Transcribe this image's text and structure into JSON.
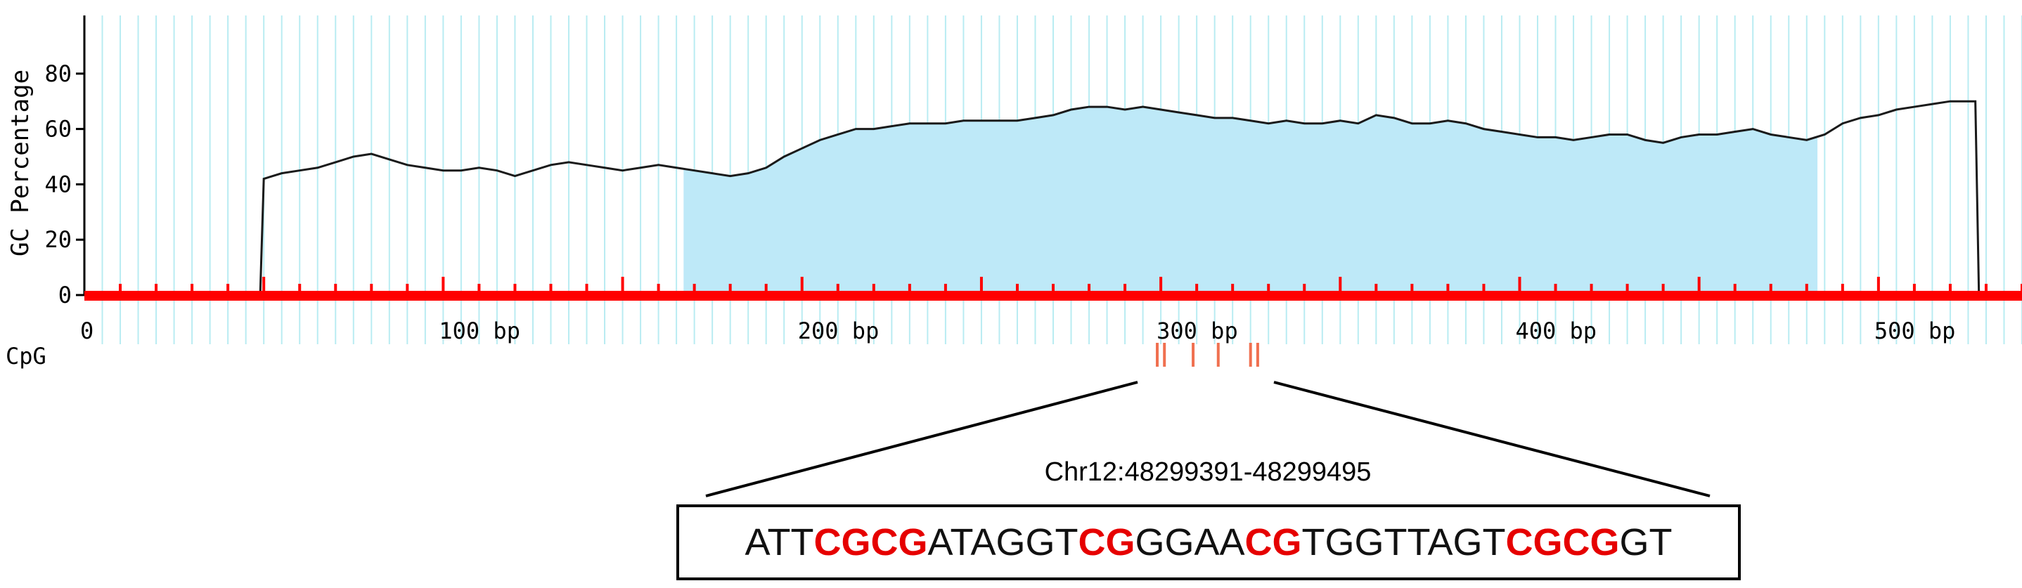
{
  "chart_data": {
    "type": "area",
    "ylabel": "GC Percentage",
    "ylim": [
      0,
      100
    ],
    "yticks": [
      "0",
      "20",
      "40",
      "60",
      "80"
    ],
    "ytick_values": [
      0,
      20,
      40,
      60,
      80
    ],
    "xlim": [
      0,
      540
    ],
    "xticks": [
      "0",
      "100 bp",
      "200 bp",
      "300 bp",
      "400 bp",
      "500 bp"
    ],
    "xtick_values": [
      0,
      100,
      200,
      300,
      400,
      500
    ],
    "cpg_island_range": [
      167,
      483
    ],
    "gc_profile": [
      [
        0,
        0
      ],
      [
        49,
        0
      ],
      [
        50,
        42
      ],
      [
        55,
        44
      ],
      [
        60,
        45
      ],
      [
        65,
        46
      ],
      [
        70,
        48
      ],
      [
        75,
        50
      ],
      [
        80,
        51
      ],
      [
        85,
        49
      ],
      [
        90,
        47
      ],
      [
        95,
        46
      ],
      [
        100,
        45
      ],
      [
        105,
        45
      ],
      [
        110,
        46
      ],
      [
        115,
        45
      ],
      [
        120,
        43
      ],
      [
        125,
        45
      ],
      [
        130,
        47
      ],
      [
        135,
        48
      ],
      [
        140,
        47
      ],
      [
        145,
        46
      ],
      [
        150,
        45
      ],
      [
        155,
        46
      ],
      [
        160,
        47
      ],
      [
        165,
        46
      ],
      [
        170,
        45
      ],
      [
        175,
        44
      ],
      [
        180,
        43
      ],
      [
        185,
        44
      ],
      [
        190,
        46
      ],
      [
        195,
        50
      ],
      [
        200,
        53
      ],
      [
        205,
        56
      ],
      [
        210,
        58
      ],
      [
        215,
        60
      ],
      [
        220,
        60
      ],
      [
        225,
        61
      ],
      [
        230,
        62
      ],
      [
        235,
        62
      ],
      [
        240,
        62
      ],
      [
        245,
        63
      ],
      [
        250,
        63
      ],
      [
        255,
        63
      ],
      [
        260,
        63
      ],
      [
        265,
        64
      ],
      [
        270,
        65
      ],
      [
        275,
        67
      ],
      [
        280,
        68
      ],
      [
        285,
        68
      ],
      [
        290,
        67
      ],
      [
        295,
        68
      ],
      [
        300,
        67
      ],
      [
        305,
        66
      ],
      [
        310,
        65
      ],
      [
        315,
        64
      ],
      [
        320,
        64
      ],
      [
        325,
        63
      ],
      [
        330,
        62
      ],
      [
        335,
        63
      ],
      [
        340,
        62
      ],
      [
        345,
        62
      ],
      [
        350,
        63
      ],
      [
        355,
        62
      ],
      [
        360,
        65
      ],
      [
        365,
        64
      ],
      [
        370,
        62
      ],
      [
        375,
        62
      ],
      [
        380,
        63
      ],
      [
        385,
        62
      ],
      [
        390,
        60
      ],
      [
        395,
        59
      ],
      [
        400,
        58
      ],
      [
        405,
        57
      ],
      [
        410,
        57
      ],
      [
        415,
        56
      ],
      [
        420,
        57
      ],
      [
        425,
        58
      ],
      [
        430,
        58
      ],
      [
        435,
        56
      ],
      [
        440,
        55
      ],
      [
        445,
        57
      ],
      [
        450,
        58
      ],
      [
        455,
        58
      ],
      [
        460,
        59
      ],
      [
        465,
        60
      ],
      [
        470,
        58
      ],
      [
        475,
        57
      ],
      [
        480,
        56
      ],
      [
        485,
        58
      ],
      [
        490,
        62
      ],
      [
        495,
        64
      ],
      [
        500,
        65
      ],
      [
        505,
        67
      ],
      [
        510,
        68
      ],
      [
        515,
        69
      ],
      [
        520,
        70
      ],
      [
        527,
        70
      ],
      [
        528,
        0
      ],
      [
        540,
        0
      ]
    ],
    "cpg_label": "CpG",
    "cpg_sites_bp": [
      299,
      301,
      309,
      316,
      325,
      327
    ],
    "zoom_region_label": "Chr12:48299391-48299495",
    "sequence_segments": [
      {
        "text": "ATT",
        "cpg": false
      },
      {
        "text": "CGCG",
        "cpg": true
      },
      {
        "text": "ATAGGT",
        "cpg": false
      },
      {
        "text": "CG",
        "cpg": true
      },
      {
        "text": "GGAA",
        "cpg": false
      },
      {
        "text": "CG",
        "cpg": true
      },
      {
        "text": "TGGTTAGT",
        "cpg": false
      },
      {
        "text": "CGCG",
        "cpg": true
      },
      {
        "text": "GT",
        "cpg": false
      }
    ],
    "colors": {
      "grid": "#b9ecf2",
      "fill": "#bee9f8",
      "line": "#1a1a1a",
      "baseline": "#ff0000",
      "cpg_mark": "#f07050",
      "cpg_text": "#e60000"
    }
  }
}
